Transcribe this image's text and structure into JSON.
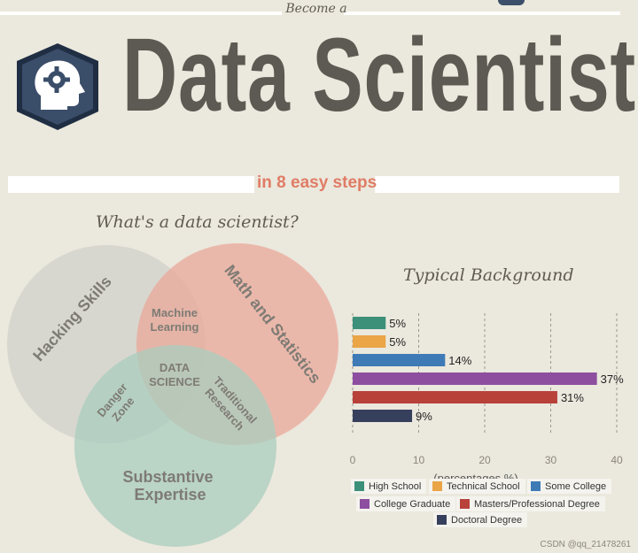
{
  "header": {
    "become": "Become a",
    "title": "Data Scientist",
    "steps": "in 8 easy steps"
  },
  "venn": {
    "question": "What's a data scientist?",
    "circles": {
      "hacking": "Hacking Skills",
      "math": "Math and Statistics",
      "substantive": "Substantive Expertise"
    },
    "overlaps": {
      "machine_learning": "Machine Learning",
      "data_science": "DATA SCIENCE",
      "danger_zone": "Danger Zone",
      "traditional_research": "Traditional Research"
    },
    "colors": {
      "hacking": "#d5d3cc",
      "math": "#e9a89a",
      "substantive": "#a9cdbd",
      "label": "#7e7b74"
    }
  },
  "chart_data": {
    "type": "bar",
    "orientation": "horizontal",
    "title": "Typical Background",
    "xlabel": "(percentages %)",
    "xlim": [
      0,
      40
    ],
    "xticks": [
      0,
      10,
      20,
      30,
      40
    ],
    "grid": true,
    "legend_position": "bottom",
    "categories": [
      "High School",
      "Technical School",
      "Some College",
      "College Graduate",
      "Masters/Professional Degree",
      "Doctoral Degree"
    ],
    "values": [
      5,
      5,
      14,
      37,
      31,
      9
    ],
    "value_labels": [
      "5%",
      "5%",
      "14%",
      "37%",
      "31%",
      "9%"
    ],
    "colors": [
      "#3c9079",
      "#eaa547",
      "#3e7ab6",
      "#8d4ea0",
      "#b8413a",
      "#363f5c"
    ]
  },
  "watermark": "CSDN @qq_21478261"
}
